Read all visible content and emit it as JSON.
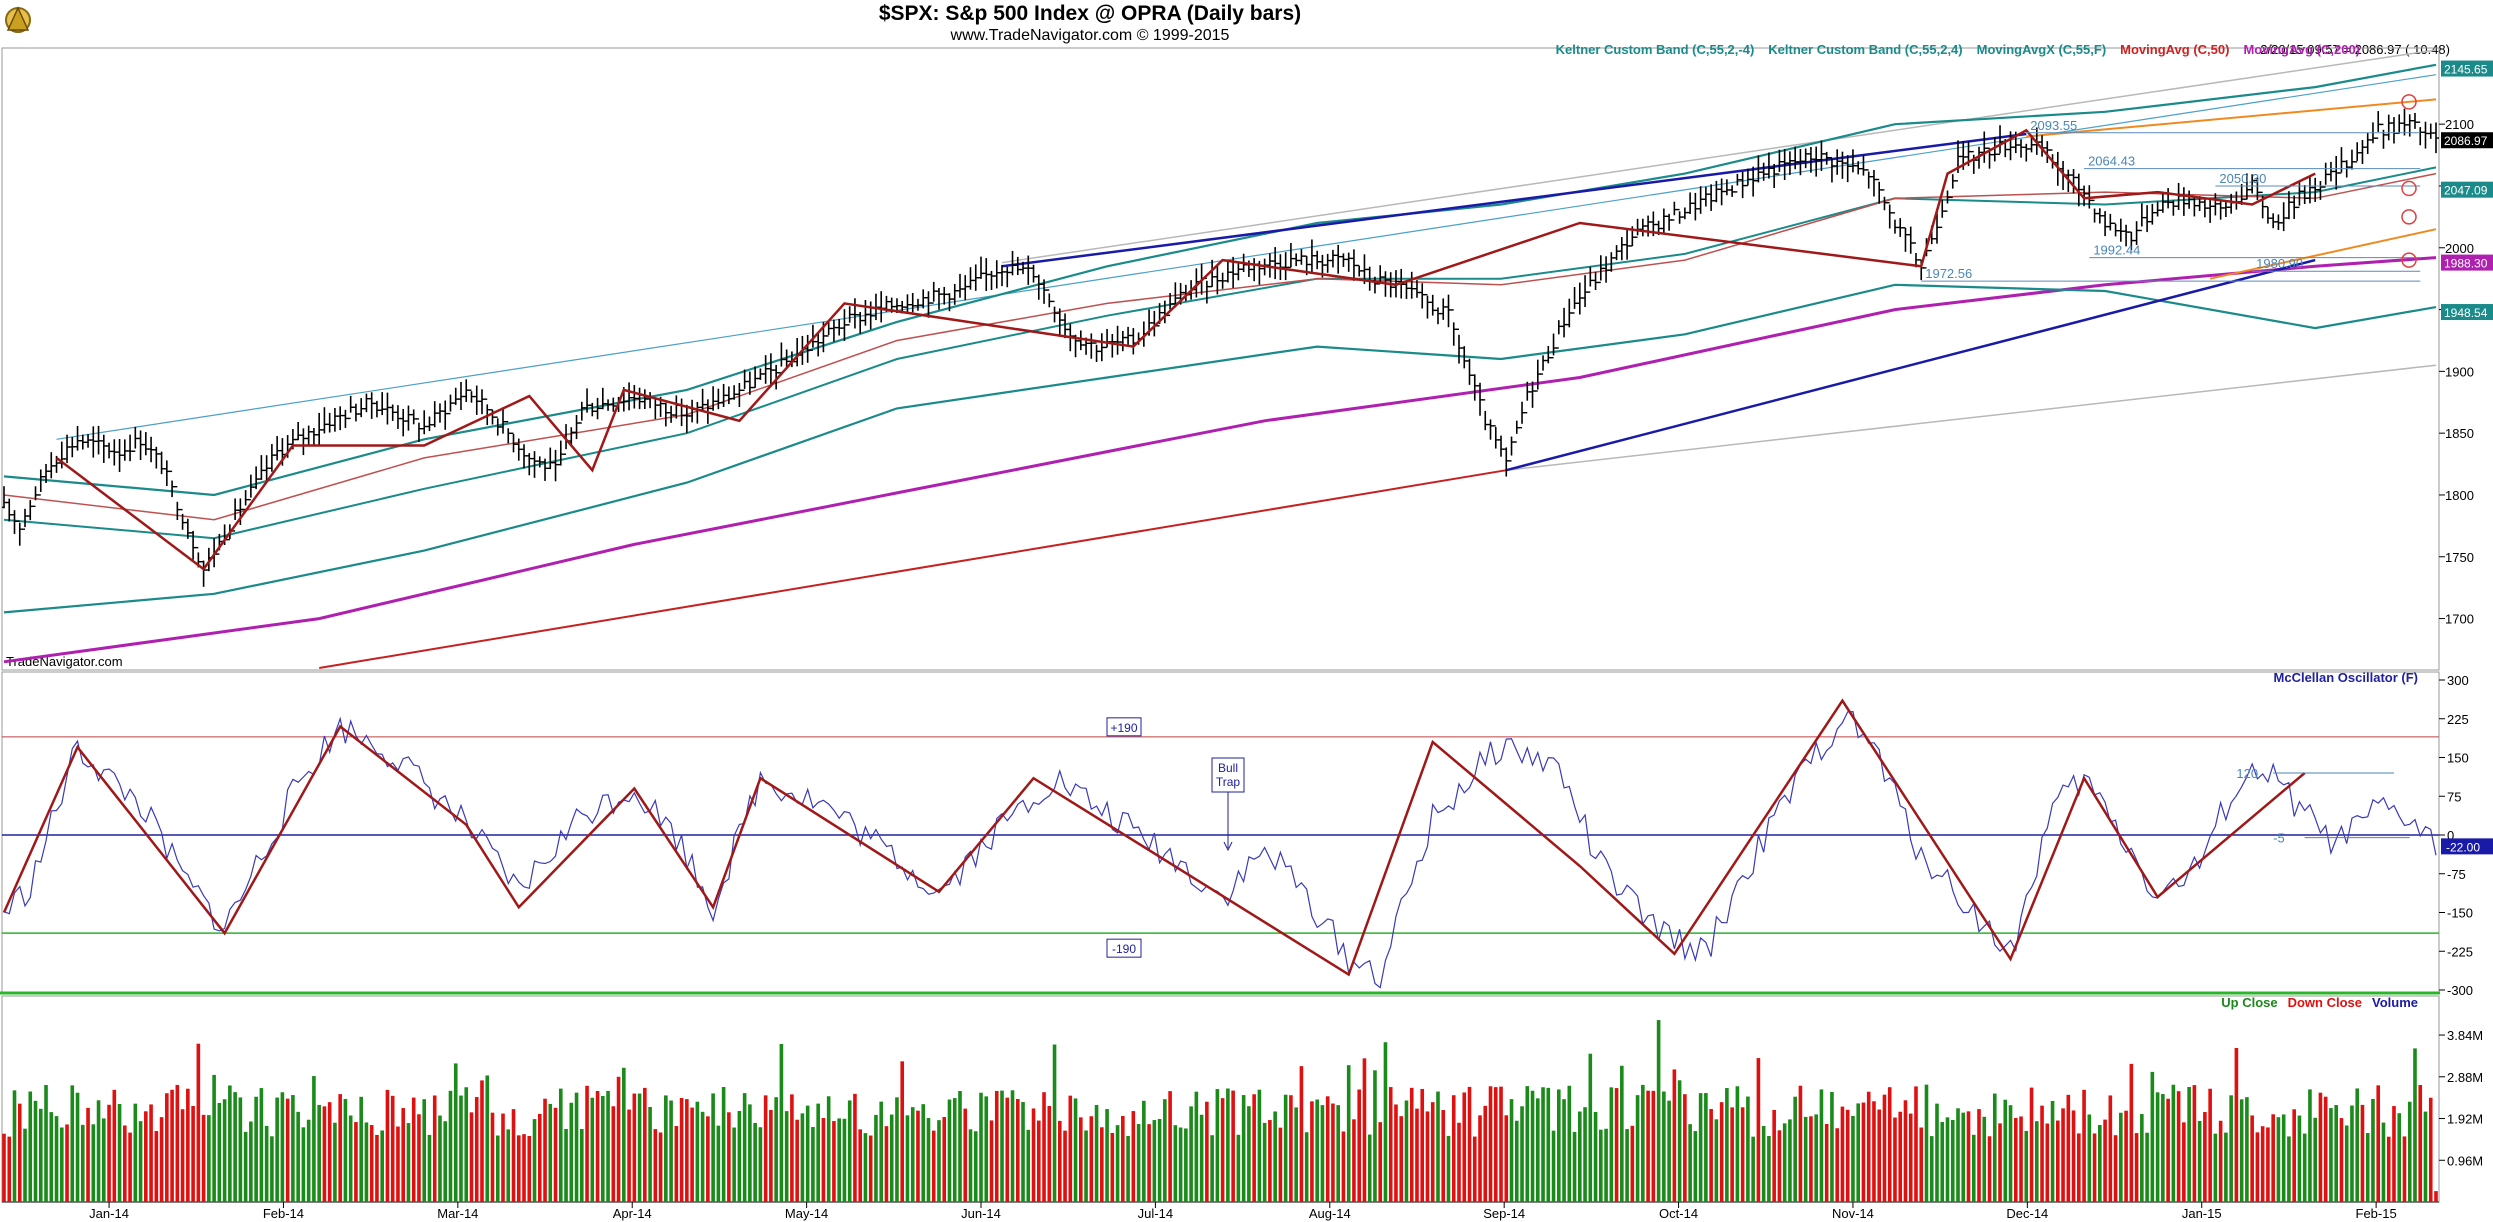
{
  "header": {
    "title": "$SPX:  S&p 500 Index @ OPRA  (Daily bars)",
    "subtitle": "www.TradeNavigator.com © 1999-2015",
    "watermark": "TradeNavigator.com",
    "quote": "2/20/15 09:57 = 2086.97 ( 10.48)"
  },
  "colors": {
    "up": "#1a8a1a",
    "down": "#e01010",
    "keltner": "#1a8a8a",
    "ma50": "#c05050",
    "ma200": "#b020b0",
    "zigzag": "#a01818",
    "trend_blue": "#1a1aa8",
    "osc": "#3a3ab8",
    "channel_light": "#b8b8b8",
    "orange": "#f08a20"
  },
  "chart_data": [
    {
      "type": "line",
      "panel": "price",
      "legend": [
        {
          "label": "Keltner Custom Band (C,55,2,-4)",
          "color": "#1a8a8a"
        },
        {
          "label": "Keltner Custom Band (C,55,2,4)",
          "color": "#1a8a8a"
        },
        {
          "label": "MovingAvgX (C,55,F)",
          "color": "#1a8a8a"
        },
        {
          "label": "MovingAvg (C,50)",
          "color": "#d02020"
        },
        {
          "label": "MovingAvg (C,200)",
          "color": "#b020b0"
        }
      ],
      "x_ticks": [
        "Jan-14",
        "Feb-14",
        "Mar-14",
        "Apr-14",
        "May-14",
        "Jun-14",
        "Jul-14",
        "Aug-14",
        "Sep-14",
        "Oct-14",
        "Nov-14",
        "Dec-14",
        "Jan-15",
        "Feb-15"
      ],
      "y_ticks": [
        1700,
        1750,
        1800,
        1850,
        1900,
        1950,
        2000,
        2050,
        2100
      ],
      "ylim": [
        1660,
        2160
      ],
      "price_path": [
        [
          0,
          1790
        ],
        [
          3,
          1775
        ],
        [
          8,
          1820
        ],
        [
          10,
          1830
        ],
        [
          14,
          1845
        ],
        [
          22,
          1835
        ],
        [
          26,
          1845
        ],
        [
          30,
          1825
        ],
        [
          38,
          1740
        ],
        [
          45,
          1790
        ],
        [
          52,
          1835
        ],
        [
          62,
          1860
        ],
        [
          70,
          1875
        ],
        [
          80,
          1855
        ],
        [
          88,
          1885
        ],
        [
          92,
          1870
        ],
        [
          100,
          1830
        ],
        [
          105,
          1820
        ],
        [
          110,
          1870
        ],
        [
          120,
          1880
        ],
        [
          130,
          1865
        ],
        [
          138,
          1880
        ],
        [
          148,
          1905
        ],
        [
          160,
          1940
        ],
        [
          170,
          1955
        ],
        [
          182,
          1965
        ],
        [
          190,
          1985
        ],
        [
          196,
          1980
        ],
        [
          203,
          1930
        ],
        [
          208,
          1920
        ],
        [
          215,
          1925
        ],
        [
          225,
          1965
        ],
        [
          236,
          1985
        ],
        [
          246,
          1990
        ],
        [
          256,
          1990
        ],
        [
          260,
          1975
        ],
        [
          265,
          1970
        ],
        [
          275,
          1945
        ],
        [
          282,
          1860
        ],
        [
          286,
          1825
        ],
        [
          290,
          1880
        ],
        [
          298,
          1950
        ],
        [
          310,
          2010
        ],
        [
          322,
          2035
        ],
        [
          334,
          2060
        ],
        [
          345,
          2075
        ],
        [
          355,
          2060
        ],
        [
          360,
          2020
        ],
        [
          365,
          1985
        ],
        [
          372,
          2070
        ],
        [
          382,
          2085
        ],
        [
          388,
          2080
        ],
        [
          392,
          2060
        ],
        [
          396,
          2045
        ],
        [
          400,
          2020
        ],
        [
          405,
          2010
        ],
        [
          410,
          2035
        ],
        [
          416,
          2040
        ],
        [
          422,
          2030
        ],
        [
          428,
          2050
        ],
        [
          432,
          2020
        ],
        [
          438,
          2045
        ],
        [
          445,
          2065
        ],
        [
          452,
          2095
        ],
        [
          458,
          2100
        ],
        [
          463,
          2087
        ]
      ],
      "keltner_upper": [
        [
          0,
          1815
        ],
        [
          40,
          1800
        ],
        [
          80,
          1845
        ],
        [
          130,
          1885
        ],
        [
          170,
          1940
        ],
        [
          210,
          1985
        ],
        [
          250,
          2020
        ],
        [
          285,
          2035
        ],
        [
          320,
          2060
        ],
        [
          360,
          2100
        ],
        [
          400,
          2110
        ],
        [
          440,
          2130
        ],
        [
          463,
          2148
        ]
      ],
      "keltner_mid": [
        [
          0,
          1780
        ],
        [
          40,
          1765
        ],
        [
          80,
          1805
        ],
        [
          130,
          1850
        ],
        [
          170,
          1910
        ],
        [
          210,
          1945
        ],
        [
          250,
          1975
        ],
        [
          285,
          1975
        ],
        [
          320,
          1995
        ],
        [
          360,
          2040
        ],
        [
          400,
          2035
        ],
        [
          440,
          2045
        ],
        [
          463,
          2065
        ]
      ],
      "keltner_lower": [
        [
          0,
          1705
        ],
        [
          40,
          1720
        ],
        [
          80,
          1755
        ],
        [
          130,
          1810
        ],
        [
          170,
          1870
        ],
        [
          210,
          1895
        ],
        [
          250,
          1920
        ],
        [
          285,
          1910
        ],
        [
          320,
          1930
        ],
        [
          360,
          1970
        ],
        [
          400,
          1965
        ],
        [
          440,
          1935
        ],
        [
          463,
          1952
        ]
      ],
      "ma50": [
        [
          0,
          1800
        ],
        [
          40,
          1780
        ],
        [
          80,
          1830
        ],
        [
          130,
          1865
        ],
        [
          170,
          1925
        ],
        [
          210,
          1955
        ],
        [
          250,
          1975
        ],
        [
          285,
          1970
        ],
        [
          320,
          1990
        ],
        [
          360,
          2040
        ],
        [
          400,
          2045
        ],
        [
          440,
          2040
        ],
        [
          463,
          2060
        ]
      ],
      "ma200": [
        [
          0,
          1665
        ],
        [
          60,
          1700
        ],
        [
          120,
          1760
        ],
        [
          180,
          1810
        ],
        [
          240,
          1860
        ],
        [
          300,
          1895
        ],
        [
          360,
          1950
        ],
        [
          400,
          1970
        ],
        [
          440,
          1985
        ],
        [
          463,
          1992
        ]
      ],
      "zigzag": [
        [
          10,
          1830
        ],
        [
          38,
          1740
        ],
        [
          55,
          1840
        ],
        [
          80,
          1840
        ],
        [
          100,
          1880
        ],
        [
          112,
          1820
        ],
        [
          118,
          1885
        ],
        [
          140,
          1860
        ],
        [
          160,
          1955
        ],
        [
          215,
          1920
        ],
        [
          232,
          1990
        ],
        [
          265,
          1970
        ],
        [
          300,
          2020
        ],
        [
          365,
          1985
        ],
        [
          370,
          2060
        ],
        [
          385,
          2095
        ],
        [
          396,
          2040
        ],
        [
          410,
          2045
        ],
        [
          428,
          2035
        ],
        [
          440,
          2060
        ]
      ],
      "trend_blue_upper": [
        [
          190,
          1985
        ],
        [
          385,
          2092
        ]
      ],
      "trend_blue_lower": [
        [
          286,
          1820
        ],
        [
          440,
          1990
        ]
      ],
      "trend_red": [
        [
          60,
          1660
        ],
        [
          286,
          1820
        ]
      ],
      "channel_upper": [
        [
          10,
          1845
        ],
        [
          463,
          2140
        ]
      ],
      "channel_upper2": [
        [
          190,
          1988
        ],
        [
          463,
          2160
        ]
      ],
      "channel_lower": [
        [
          286,
          1820
        ],
        [
          463,
          1905
        ]
      ],
      "orange_upper": [
        [
          385,
          2090
        ],
        [
          463,
          2120
        ]
      ],
      "orange_lower": [
        [
          420,
          1975
        ],
        [
          463,
          2015
        ]
      ],
      "annotations": [
        {
          "label": "2093.55",
          "x": 385,
          "y": 2093
        },
        {
          "label": "2064.43",
          "x": 396,
          "y": 2064
        },
        {
          "label": "2050.30",
          "x": 421,
          "y": 2050
        },
        {
          "label": "1992.44",
          "x": 397,
          "y": 1992
        },
        {
          "label": "1980.90",
          "x": 428,
          "y": 1981
        },
        {
          "label": "1972.56",
          "x": 365,
          "y": 1973
        }
      ],
      "tags": [
        {
          "label": "2145.65",
          "y": 2145,
          "bg": "#1a8a8a"
        },
        {
          "label": "2086.97",
          "y": 2087,
          "bg": "#000000"
        },
        {
          "label": "2047.09",
          "y": 2047,
          "bg": "#1a8a8a"
        },
        {
          "label": "1988.30",
          "y": 1988,
          "bg": "#b020b0"
        },
        {
          "label": "1948.54",
          "y": 1948,
          "bg": "#1a8a8a"
        }
      ]
    },
    {
      "type": "line",
      "panel": "oscillator",
      "name": "McClellan Oscillator (F)",
      "y_ticks": [
        300,
        225,
        150,
        75,
        0,
        -75,
        -150,
        -225,
        -300
      ],
      "ylim": [
        -300,
        300
      ],
      "levels": [
        190,
        0,
        -190
      ],
      "level_labels": [
        "+190",
        "-190"
      ],
      "annotation": "Bull Trap",
      "osc_path": [
        [
          0,
          -150
        ],
        [
          5,
          -100
        ],
        [
          14,
          170
        ],
        [
          20,
          110
        ],
        [
          26,
          60
        ],
        [
          34,
          -80
        ],
        [
          42,
          -180
        ],
        [
          48,
          -60
        ],
        [
          56,
          100
        ],
        [
          64,
          210
        ],
        [
          72,
          170
        ],
        [
          80,
          100
        ],
        [
          88,
          20
        ],
        [
          98,
          -110
        ],
        [
          110,
          40
        ],
        [
          120,
          90
        ],
        [
          128,
          0
        ],
        [
          135,
          -140
        ],
        [
          144,
          110
        ],
        [
          156,
          60
        ],
        [
          168,
          -30
        ],
        [
          178,
          -110
        ],
        [
          190,
          20
        ],
        [
          200,
          110
        ],
        [
          210,
          40
        ],
        [
          222,
          -40
        ],
        [
          232,
          -120
        ],
        [
          240,
          -30
        ],
        [
          246,
          -90
        ],
        [
          256,
          -240
        ],
        [
          262,
          -270
        ],
        [
          272,
          30
        ],
        [
          285,
          175
        ],
        [
          296,
          130
        ],
        [
          304,
          -60
        ],
        [
          314,
          -180
        ],
        [
          324,
          -230
        ],
        [
          330,
          -100
        ],
        [
          340,
          80
        ],
        [
          350,
          230
        ],
        [
          356,
          170
        ],
        [
          364,
          -20
        ],
        [
          374,
          -140
        ],
        [
          382,
          -230
        ],
        [
          390,
          50
        ],
        [
          396,
          110
        ],
        [
          402,
          20
        ],
        [
          410,
          -120
        ],
        [
          418,
          -60
        ],
        [
          424,
          80
        ],
        [
          430,
          130
        ],
        [
          438,
          40
        ],
        [
          444,
          -20
        ],
        [
          452,
          50
        ],
        [
          458,
          30
        ],
        [
          463,
          -22
        ]
      ],
      "zigzag": [
        [
          0,
          -150
        ],
        [
          14,
          170
        ],
        [
          42,
          -190
        ],
        [
          64,
          210
        ],
        [
          88,
          20
        ],
        [
          98,
          -140
        ],
        [
          120,
          90
        ],
        [
          135,
          -140
        ],
        [
          144,
          110
        ],
        [
          178,
          -110
        ],
        [
          196,
          110
        ],
        [
          256,
          -270
        ],
        [
          272,
          180
        ],
        [
          300,
          -60
        ],
        [
          318,
          -230
        ],
        [
          350,
          260
        ],
        [
          382,
          -240
        ],
        [
          396,
          110
        ],
        [
          410,
          -120
        ],
        [
          438,
          120
        ]
      ],
      "value_tag": {
        "label": "-22.00",
        "y": -22
      },
      "left_labels": [
        "120",
        "-5"
      ]
    },
    {
      "type": "bar",
      "panel": "volume",
      "legend": [
        {
          "label": "Up Close",
          "color": "#1a8a1a"
        },
        {
          "label": "Down Close",
          "color": "#e01010"
        },
        {
          "label": "Volume",
          "color": "#1a1aa8"
        }
      ],
      "y_ticks": [
        "3.84M",
        "2.88M",
        "1.92M",
        "0.96M"
      ],
      "ylim": [
        0,
        4.6
      ]
    }
  ]
}
